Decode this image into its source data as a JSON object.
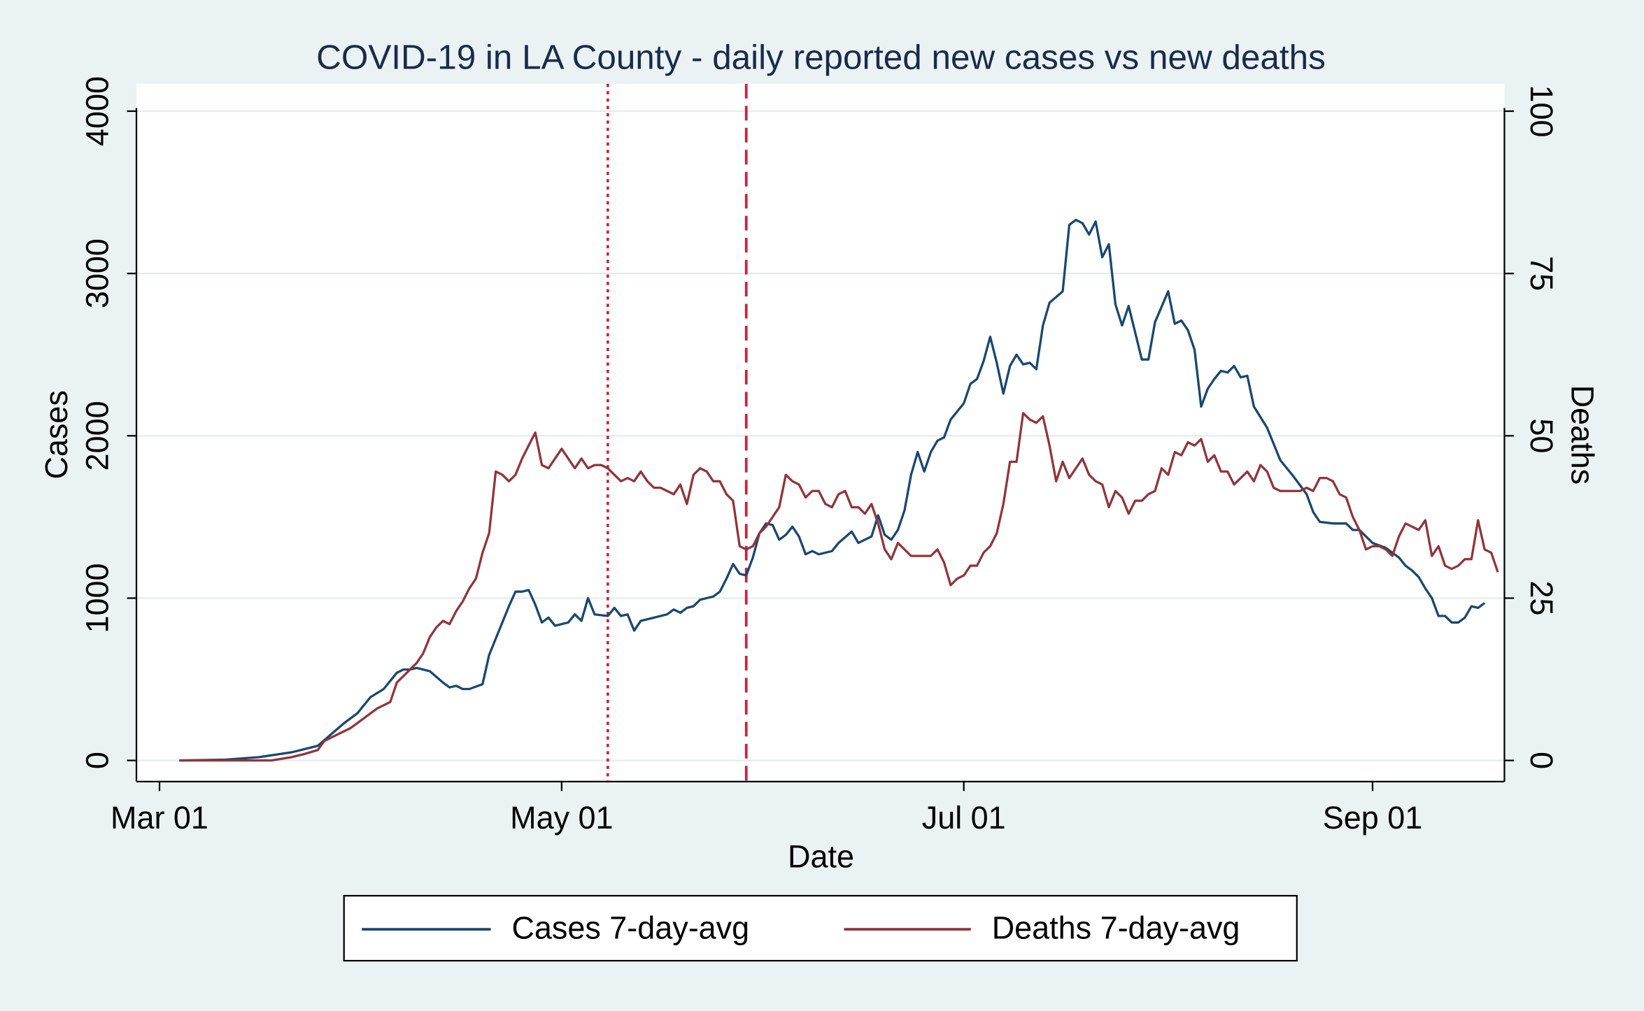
{
  "chart_data": {
    "type": "line",
    "title": "COVID-19 in LA County - daily reported new cases vs new deaths",
    "xlabel": "Date",
    "ylabel": "Cases",
    "y2label": "Deaths",
    "xlim": [
      -3.5,
      204
    ],
    "xticks": [
      {
        "value": 0,
        "label": "Mar 01"
      },
      {
        "value": 61,
        "label": "May 01"
      },
      {
        "value": 122,
        "label": "Jul 01"
      },
      {
        "value": 184,
        "label": "Sep 01"
      }
    ],
    "ylim": [
      -130,
      4020
    ],
    "yticks": [
      0,
      1000,
      2000,
      3000,
      4000
    ],
    "y2lim": [
      -3.25,
      100.5
    ],
    "y2ticks": [
      0,
      25,
      50,
      75,
      100
    ],
    "grid": true,
    "legend": "bottom",
    "vlines": [
      {
        "x": 68,
        "color": "#d0203a",
        "style": "dotted"
      },
      {
        "x": 89,
        "color": "#d0203a",
        "style": "dashed"
      }
    ],
    "series": [
      {
        "name": "Cases 7-day-avg",
        "color": "#1a476f",
        "axis": "y",
        "x": [
          3,
          10,
          15,
          20,
          24,
          26,
          28,
          30,
          32,
          34,
          36,
          37,
          38,
          39,
          41,
          43,
          44,
          45,
          46,
          47,
          49,
          50,
          52,
          53,
          54,
          55,
          56,
          57,
          58,
          59,
          60,
          62,
          63,
          64,
          65,
          66,
          68,
          69,
          70,
          71,
          72,
          73,
          75,
          77,
          78,
          79,
          80,
          81,
          82,
          84,
          85,
          86,
          87,
          88,
          89,
          90,
          91,
          92,
          93,
          94,
          95,
          96,
          97,
          98,
          99,
          100,
          102,
          103,
          105,
          106,
          108,
          109,
          110,
          111,
          112,
          113,
          114,
          115,
          116,
          117,
          118,
          119,
          120,
          122,
          123,
          124,
          125,
          126,
          127,
          128,
          129,
          130,
          131,
          132,
          133,
          134,
          135,
          137,
          138,
          139,
          140,
          141,
          142,
          143,
          144,
          145,
          146,
          147,
          149,
          150,
          151,
          153,
          154,
          155,
          156,
          157,
          158,
          159,
          160,
          161,
          162,
          163,
          164,
          165,
          166,
          168,
          170,
          172,
          174,
          175,
          176,
          178,
          180,
          181,
          182,
          184,
          186,
          188,
          189,
          190,
          191,
          192,
          193,
          194,
          195,
          196,
          197,
          198,
          199,
          200,
          201
        ],
        "values": [
          0,
          5,
          20,
          50,
          90,
          160,
          230,
          290,
          390,
          440,
          540,
          560,
          560,
          570,
          550,
          480,
          450,
          460,
          440,
          440,
          470,
          650,
          850,
          950,
          1040,
          1040,
          1050,
          960,
          850,
          880,
          830,
          850,
          900,
          860,
          1000,
          900,
          890,
          940,
          890,
          900,
          800,
          860,
          880,
          900,
          930,
          910,
          940,
          950,
          990,
          1010,
          1040,
          1120,
          1210,
          1150,
          1140,
          1250,
          1400,
          1460,
          1450,
          1360,
          1390,
          1440,
          1380,
          1270,
          1290,
          1270,
          1290,
          1340,
          1410,
          1340,
          1380,
          1510,
          1390,
          1360,
          1420,
          1540,
          1760,
          1900,
          1780,
          1900,
          1970,
          1990,
          2100,
          2200,
          2320,
          2350,
          2460,
          2610,
          2450,
          2260,
          2430,
          2500,
          2440,
          2450,
          2410,
          2680,
          2820,
          2890,
          3300,
          3330,
          3310,
          3240,
          3320,
          3100,
          3180,
          2810,
          2680,
          2800,
          2470,
          2470,
          2700,
          2890,
          2690,
          2710,
          2650,
          2530,
          2180,
          2290,
          2350,
          2400,
          2390,
          2430,
          2360,
          2370,
          2180,
          2050,
          1850,
          1750,
          1640,
          1530,
          1470,
          1460,
          1460,
          1420,
          1420,
          1340,
          1310,
          1250,
          1200,
          1170,
          1130,
          1060,
          1000,
          890,
          890,
          850,
          850,
          880,
          950,
          940,
          970
        ]
      },
      {
        "name": "Deaths 7-day-avg",
        "color": "#90353b",
        "axis": "y2",
        "x": [
          3,
          15,
          17,
          20,
          22,
          24,
          25,
          27,
          29,
          31,
          33,
          35,
          36,
          37,
          38,
          39,
          40,
          41,
          42,
          43,
          44,
          45,
          46,
          47,
          48,
          49,
          50,
          51,
          52,
          53,
          54,
          55,
          56,
          57,
          58,
          59,
          60,
          61,
          62,
          63,
          64,
          65,
          66,
          67,
          68,
          69,
          70,
          71,
          72,
          73,
          74,
          75,
          76,
          77,
          78,
          79,
          80,
          81,
          82,
          83,
          84,
          85,
          86,
          87,
          88,
          89,
          90,
          91,
          92,
          93,
          94,
          95,
          96,
          97,
          98,
          99,
          100,
          101,
          102,
          103,
          104,
          105,
          106,
          107,
          108,
          109,
          110,
          111,
          112,
          113,
          114,
          115,
          116,
          117,
          118,
          119,
          120,
          121,
          122,
          123,
          124,
          125,
          126,
          127,
          128,
          129,
          130,
          131,
          132,
          133,
          134,
          135,
          136,
          137,
          138,
          139,
          140,
          141,
          142,
          143,
          144,
          145,
          146,
          147,
          148,
          149,
          150,
          151,
          152,
          153,
          154,
          155,
          156,
          157,
          158,
          159,
          160,
          161,
          162,
          163,
          164,
          165,
          166,
          167,
          168,
          169,
          170,
          171,
          172,
          173,
          174,
          175,
          176,
          177,
          178,
          179,
          180,
          181,
          182,
          183,
          184,
          185,
          186,
          187,
          188,
          189,
          190,
          191,
          192,
          193,
          194,
          195,
          196,
          197,
          198,
          199,
          200,
          201,
          202,
          203
        ],
        "values": [
          0,
          0,
          0,
          0.5,
          1,
          1.6,
          3,
          4,
          5,
          6.5,
          8,
          9,
          12,
          13,
          14,
          15,
          16.5,
          19,
          20.5,
          21.5,
          21,
          23,
          24.5,
          26.5,
          28,
          32,
          35,
          44.5,
          44,
          43,
          44,
          46.5,
          48.5,
          50.5,
          45.5,
          45,
          46.5,
          48,
          46.5,
          45,
          46.5,
          45,
          45.5,
          45.5,
          45,
          44,
          43,
          43.5,
          43,
          44.5,
          43,
          42,
          42,
          41.5,
          41,
          42.5,
          39.5,
          44,
          45,
          44.5,
          43,
          43,
          41,
          40,
          33,
          32.5,
          33,
          35,
          36,
          37.5,
          39,
          44,
          43,
          42.5,
          40.5,
          41.5,
          41.5,
          39.5,
          39,
          41,
          41.5,
          39,
          39,
          38,
          39.5,
          36.5,
          32.5,
          31,
          33.5,
          32.5,
          31.5,
          31.5,
          31.5,
          31.5,
          32.5,
          30.5,
          27,
          28,
          28.5,
          30,
          30,
          32,
          33,
          35,
          39.5,
          46,
          46,
          53.5,
          52.5,
          52,
          53,
          48.5,
          43,
          46,
          43.5,
          45,
          46.5,
          44,
          43,
          42.5,
          39,
          41.5,
          40.5,
          38,
          40,
          40,
          41,
          41.5,
          45,
          44,
          47.5,
          47,
          49,
          48.5,
          49.5,
          46,
          47,
          44.5,
          44.5,
          42.5,
          43.5,
          44.5,
          43,
          45.5,
          44.5,
          42,
          41.5,
          41.5,
          41.5,
          41.5,
          42,
          41.5,
          43.5,
          43.5,
          43,
          41,
          40.5,
          37.5,
          35.5,
          32.5,
          33,
          33,
          32.5,
          31.5,
          34.5,
          36.5,
          36,
          35.5,
          37,
          31.5,
          33,
          30,
          29.5,
          30,
          31,
          31,
          37,
          32.5,
          32,
          29
        ]
      }
    ]
  }
}
